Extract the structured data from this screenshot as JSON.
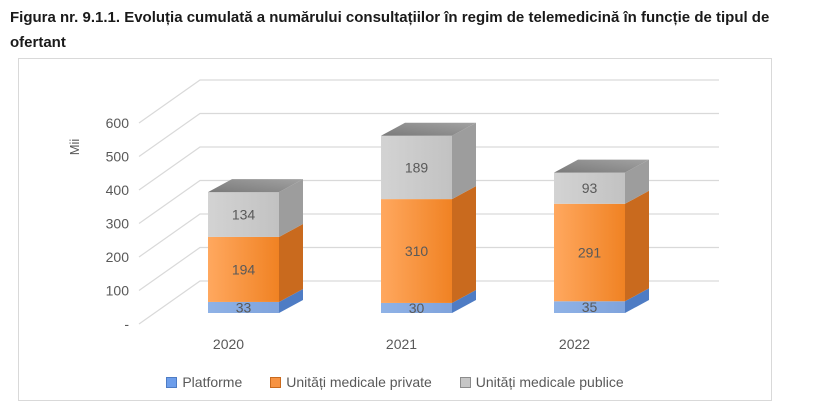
{
  "chart_data": {
    "type": "bar",
    "stacked": true,
    "projection": "3d",
    "title": "Figura nr. 9.1.1. Evoluția cumulată a numărului consultațiilor în regim de telemedicină în funcție de tipul de ofertant",
    "categories": [
      "2020",
      "2021",
      "2022"
    ],
    "series": [
      {
        "name": "Platforme",
        "values": [
          33,
          30,
          35
        ],
        "front_color": "#8FB2E6",
        "front_color2": "#7FA3DC",
        "side_color": "#4E7CC4",
        "legend_fill": "#6D9EEB",
        "legend_border": "#4E7CC4"
      },
      {
        "name": "Unități medicale private",
        "values": [
          194,
          310,
          291
        ],
        "front_color": "#FFA85F",
        "front_color2": "#F08223",
        "side_color": "#C96A1E",
        "legend_fill": "#F79342",
        "legend_border": "#C96A1E"
      },
      {
        "name": "Unități medicale publice",
        "values": [
          134,
          189,
          93
        ],
        "front_color": "#D3D3D3",
        "front_color2": "#C2C2C2",
        "side_color": "#9D9D9D",
        "top_color": "#7A7A7A",
        "top_color2": "#A2A2A2",
        "legend_fill": "#C6C6C6",
        "legend_border": "#8C8C8C"
      }
    ],
    "ylabel": "Mii",
    "ylim": [
      0,
      650
    ],
    "yticks": [
      0,
      100,
      200,
      300,
      400,
      500,
      600
    ],
    "ytick_labels": [
      "-",
      "100",
      "200",
      "300",
      "400",
      "500",
      "600"
    ],
    "grid": true,
    "legend_position": "bottom",
    "text_color": "#595959",
    "grid_color": "#D9D9D9"
  }
}
